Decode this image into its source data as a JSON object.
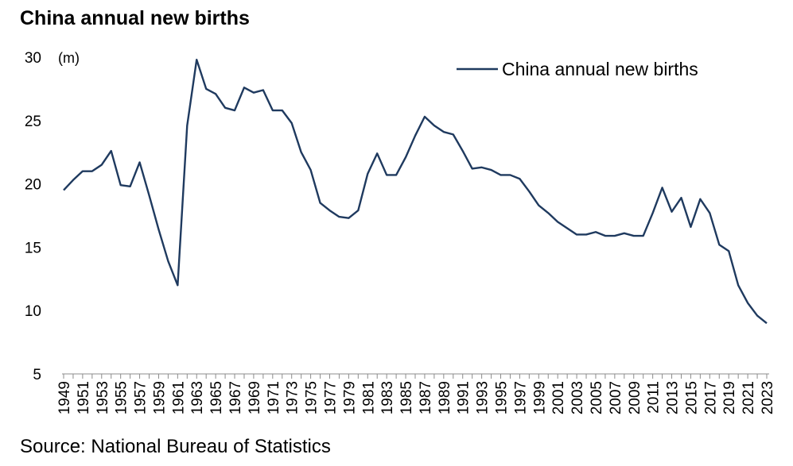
{
  "title": "China annual new births",
  "source": "Source: National Bureau of Statistics",
  "chart_data": {
    "type": "line",
    "title": "China annual new births",
    "unit_label": "(m)",
    "ylim": [
      5,
      30
    ],
    "yticks": [
      5,
      10,
      15,
      20,
      25,
      30
    ],
    "xtick_labels": [
      "1949",
      "1951",
      "1953",
      "1955",
      "1957",
      "1959",
      "1961",
      "1963",
      "1965",
      "1967",
      "1969",
      "1971",
      "1973",
      "1975",
      "1977",
      "1979",
      "1981",
      "1983",
      "1985",
      "1987",
      "1989",
      "1991",
      "1993",
      "1995",
      "1997",
      "1999",
      "2001",
      "2003",
      "2005",
      "2007",
      "2009",
      "2011",
      "2013",
      "2015",
      "2017",
      "2019",
      "2021",
      "2023"
    ],
    "legend_position": "top-right",
    "grid": false,
    "color": "#1f3a5f",
    "x": [
      1949,
      1950,
      1951,
      1952,
      1953,
      1954,
      1955,
      1956,
      1957,
      1958,
      1959,
      1960,
      1961,
      1962,
      1963,
      1964,
      1965,
      1966,
      1967,
      1968,
      1969,
      1970,
      1971,
      1972,
      1973,
      1974,
      1975,
      1976,
      1977,
      1978,
      1979,
      1980,
      1981,
      1982,
      1983,
      1984,
      1985,
      1986,
      1987,
      1988,
      1989,
      1990,
      1991,
      1992,
      1993,
      1994,
      1995,
      1996,
      1997,
      1998,
      1999,
      2000,
      2001,
      2002,
      2003,
      2004,
      2005,
      2006,
      2007,
      2008,
      2009,
      2010,
      2011,
      2012,
      2013,
      2014,
      2015,
      2016,
      2017,
      2018,
      2019,
      2020,
      2021,
      2022,
      2023
    ],
    "series": [
      {
        "name": "China annual new births",
        "values": [
          19.5,
          20.3,
          21.0,
          21.0,
          21.5,
          22.6,
          19.9,
          19.8,
          21.7,
          19.1,
          16.4,
          13.9,
          12.0,
          24.6,
          29.8,
          27.5,
          27.1,
          26.0,
          25.8,
          27.6,
          27.2,
          27.4,
          25.8,
          25.8,
          24.8,
          22.5,
          21.1,
          18.5,
          17.9,
          17.4,
          17.3,
          17.9,
          20.8,
          22.4,
          20.7,
          20.7,
          22.1,
          23.8,
          25.3,
          24.6,
          24.1,
          23.9,
          22.6,
          21.2,
          21.3,
          21.1,
          20.7,
          20.7,
          20.4,
          19.4,
          18.3,
          17.7,
          17.0,
          16.5,
          16.0,
          16.0,
          16.2,
          15.9,
          15.9,
          16.1,
          15.9,
          15.9,
          17.7,
          19.7,
          17.8,
          18.9,
          16.6,
          18.8,
          17.7,
          15.2,
          14.7,
          12.0,
          10.6,
          9.6,
          9.0
        ]
      }
    ]
  }
}
